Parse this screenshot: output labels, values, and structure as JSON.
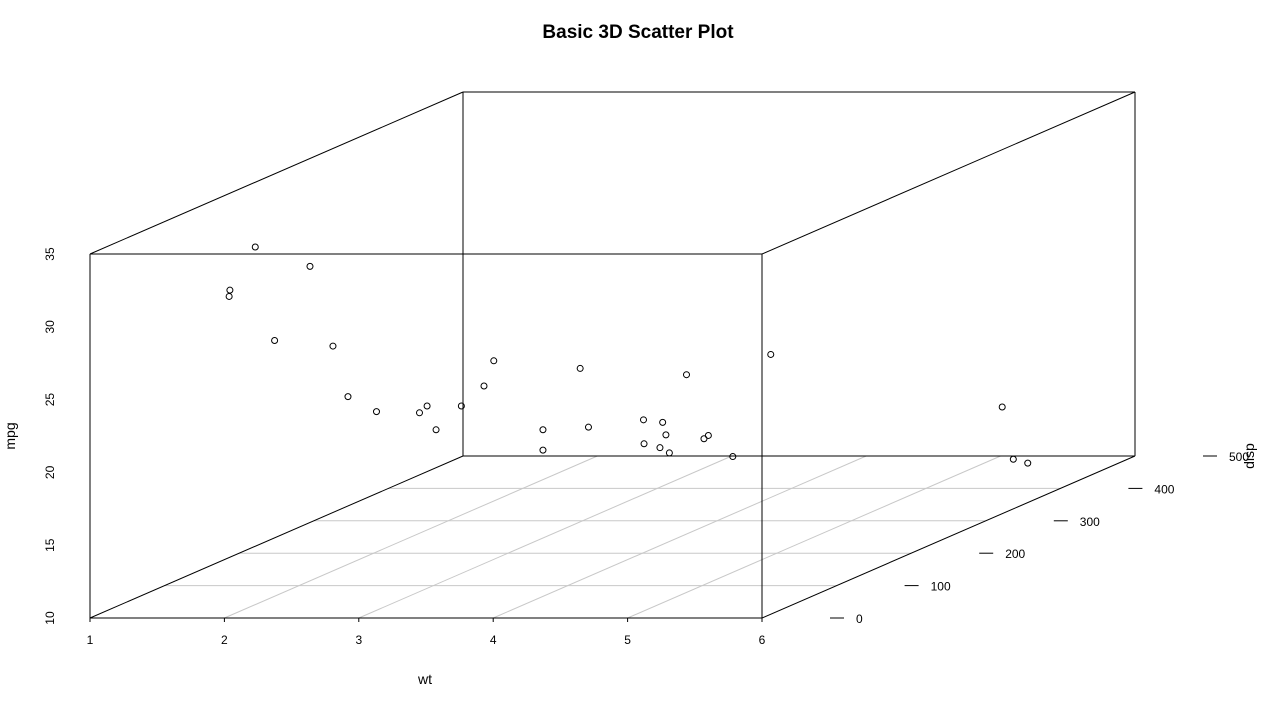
{
  "chart_data": {
    "type": "scatter",
    "title": "Basic 3D Scatter Plot",
    "xlabel": "wt",
    "ylabel": "disp",
    "zlabel": "mpg",
    "xlim": [
      1,
      6
    ],
    "ylim": [
      0,
      500
    ],
    "zlim": [
      10,
      35
    ],
    "x_ticks": [
      1,
      2,
      3,
      4,
      5,
      6
    ],
    "y_ticks": [
      0,
      100,
      200,
      300,
      400,
      500
    ],
    "z_ticks": [
      10,
      15,
      20,
      25,
      30,
      35
    ],
    "grid": true,
    "box": true,
    "points": [
      {
        "x": 2.62,
        "y": 160,
        "z": 21.0
      },
      {
        "x": 2.875,
        "y": 160,
        "z": 21.0
      },
      {
        "x": 2.32,
        "y": 108,
        "z": 22.8
      },
      {
        "x": 3.215,
        "y": 258,
        "z": 21.4
      },
      {
        "x": 3.44,
        "y": 360,
        "z": 18.7
      },
      {
        "x": 3.46,
        "y": 225,
        "z": 18.1
      },
      {
        "x": 3.57,
        "y": 360,
        "z": 14.3
      },
      {
        "x": 3.19,
        "y": 146.7,
        "z": 24.4
      },
      {
        "x": 3.15,
        "y": 140.8,
        "z": 22.8
      },
      {
        "x": 3.44,
        "y": 167.6,
        "z": 19.2
      },
      {
        "x": 3.44,
        "y": 167.6,
        "z": 17.8
      },
      {
        "x": 4.07,
        "y": 275.8,
        "z": 16.4
      },
      {
        "x": 3.73,
        "y": 275.8,
        "z": 17.3
      },
      {
        "x": 3.78,
        "y": 275.8,
        "z": 15.2
      },
      {
        "x": 5.25,
        "y": 472,
        "z": 10.4
      },
      {
        "x": 5.424,
        "y": 460,
        "z": 10.4
      },
      {
        "x": 5.345,
        "y": 440,
        "z": 14.7
      },
      {
        "x": 2.2,
        "y": 78.7,
        "z": 32.4
      },
      {
        "x": 1.615,
        "y": 75.7,
        "z": 30.4
      },
      {
        "x": 1.835,
        "y": 71.1,
        "z": 33.9
      },
      {
        "x": 2.465,
        "y": 120.1,
        "z": 21.5
      },
      {
        "x": 3.52,
        "y": 318,
        "z": 15.5
      },
      {
        "x": 3.435,
        "y": 304,
        "z": 15.2
      },
      {
        "x": 3.84,
        "y": 350,
        "z": 13.3
      },
      {
        "x": 3.845,
        "y": 400,
        "z": 19.2
      },
      {
        "x": 1.935,
        "y": 79,
        "z": 27.3
      },
      {
        "x": 2.14,
        "y": 120.3,
        "z": 26.0
      },
      {
        "x": 1.513,
        "y": 95.1,
        "z": 30.4
      },
      {
        "x": 3.17,
        "y": 351,
        "z": 15.8
      },
      {
        "x": 2.77,
        "y": 145,
        "z": 19.7
      },
      {
        "x": 3.57,
        "y": 301,
        "z": 15.0
      },
      {
        "x": 2.78,
        "y": 121,
        "z": 21.4
      }
    ]
  }
}
